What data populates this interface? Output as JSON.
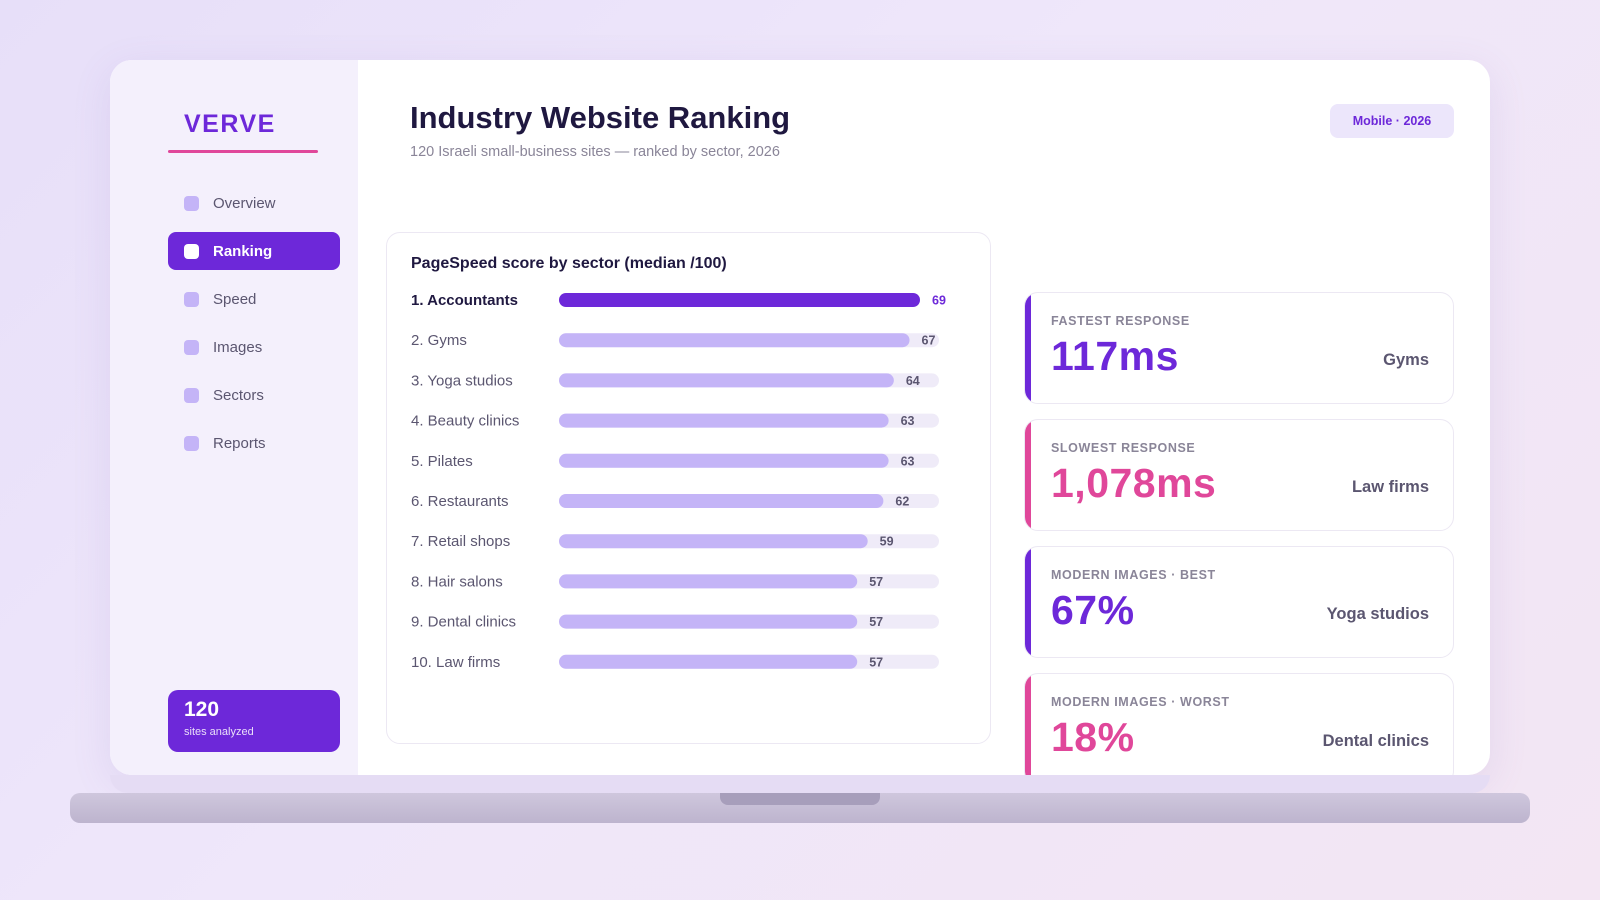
{
  "brand": "VERVE",
  "sidebar": {
    "items": [
      {
        "label": "Overview",
        "active": false
      },
      {
        "label": "Ranking",
        "active": true
      },
      {
        "label": "Speed",
        "active": false
      },
      {
        "label": "Images",
        "active": false
      },
      {
        "label": "Sectors",
        "active": false
      },
      {
        "label": "Reports",
        "active": false
      }
    ],
    "sites": {
      "count": "120",
      "label": "sites analyzed"
    }
  },
  "header": {
    "title": "Industry Website Ranking",
    "subtitle": "120 Israeli small-business sites — ranked by sector, 2026",
    "badge": "Mobile · 2026"
  },
  "chart_data": {
    "type": "bar",
    "orientation": "horizontal",
    "title": "PageSpeed score by sector (median /100)",
    "categories": [
      "1. Accountants",
      "2. Gyms",
      "3. Yoga studios",
      "4. Beauty clinics",
      "5. Pilates",
      "6. Restaurants",
      "7. Retail shops",
      "8. Hair salons",
      "9. Dental clinics",
      "10. Law firms"
    ],
    "values": [
      69,
      67,
      64,
      63,
      63,
      62,
      59,
      57,
      57,
      57
    ],
    "highlight_index": 0,
    "colors": {
      "highlight": "#6d28d9",
      "bar": "#c4b4f7",
      "track": "#efebf8"
    }
  },
  "stats": [
    {
      "label": "FASTEST RESPONSE",
      "value": "117ms",
      "sector": "Gyms",
      "color": "#6d28d9"
    },
    {
      "label": "SLOWEST RESPONSE",
      "value": "1,078ms",
      "sector": "Law firms",
      "color": "#e0479a"
    },
    {
      "label": "MODERN IMAGES · BEST",
      "value": "67%",
      "sector": "Yoga studios",
      "color": "#6d28d9"
    },
    {
      "label": "MODERN IMAGES · WORST",
      "value": "18%",
      "sector": "Dental clinics",
      "color": "#e0479a"
    }
  ]
}
